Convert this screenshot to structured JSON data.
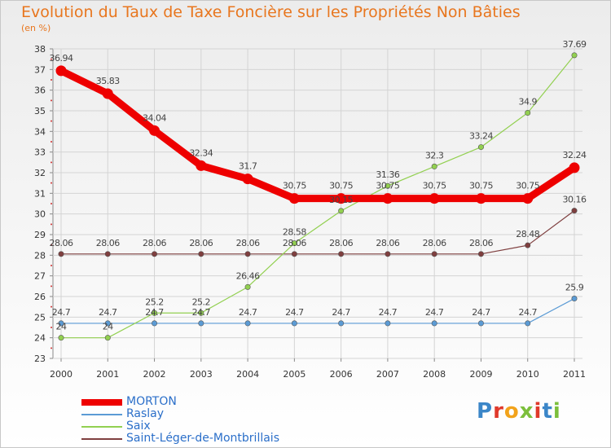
{
  "title": "Evolution du Taux de Taxe Foncière sur les Propriétés Non Bâties",
  "subtitle": "(en %)",
  "logo_text": "Proxiti",
  "logo_colors": [
    "#3b86c8",
    "#e0392b",
    "#f2a31b",
    "#7cbf3c",
    "#e0392b",
    "#3b86c8",
    "#7cbf3c"
  ],
  "chart_data": {
    "type": "line",
    "title": "Evolution du Taux de Taxe Foncière sur les Propriétés Non Bâties",
    "ylabel": "(en %)",
    "ylim": [
      23,
      38
    ],
    "yticks": [
      "23",
      "24",
      "25",
      "26",
      "27",
      "28",
      "29",
      "30",
      "31",
      "32",
      "33",
      "34",
      "35",
      "36",
      "37",
      "38"
    ],
    "x": [
      "2000",
      "2001",
      "2002",
      "2003",
      "2004",
      "2005",
      "2006",
      "2007",
      "2008",
      "2009",
      "2010",
      "2011"
    ],
    "grid": true,
    "legend_position": "bottom-left",
    "series": [
      {
        "name": "MORTON",
        "color": "#ee0000",
        "values": [
          36.94,
          35.83,
          34.04,
          32.34,
          31.7,
          30.75,
          30.75,
          30.75,
          30.75,
          30.75,
          30.75,
          32.24
        ],
        "labels": [
          "36.94",
          "35.83",
          "34.04",
          "32.34",
          "31.7",
          "30.75",
          "30.75",
          "30.75",
          "30.75",
          "30.75",
          "30.75",
          "32.24"
        ]
      },
      {
        "name": "Raslay",
        "color": "#5b9bd5",
        "values": [
          24.7,
          24.7,
          24.7,
          24.7,
          24.7,
          24.7,
          24.7,
          24.7,
          24.7,
          24.7,
          24.7,
          25.9
        ],
        "labels": [
          "24.7",
          "24.7",
          "24.7",
          "24.7",
          "24.7",
          "24.7",
          "24.7",
          "24.7",
          "24.7",
          "24.7",
          "24.7",
          "25.9"
        ]
      },
      {
        "name": "Saix",
        "color": "#92d050",
        "values": [
          24,
          24,
          25.2,
          25.2,
          26.46,
          28.58,
          30.15,
          31.36,
          32.3,
          33.24,
          34.9,
          37.69
        ],
        "labels": [
          "24",
          "24",
          "25.2",
          "25.2",
          "26.46",
          "28.58",
          "30.15",
          "31.36",
          "32.3",
          "33.24",
          "34.9",
          "37.69"
        ]
      },
      {
        "name": "Saint-Léger-de-Montbrillais",
        "color": "#7f3f3f",
        "values": [
          28.06,
          28.06,
          28.06,
          28.06,
          28.06,
          28.06,
          28.06,
          28.06,
          28.06,
          28.06,
          28.48,
          30.16
        ],
        "labels": [
          "28.06",
          "28.06",
          "28.06",
          "28.06",
          "28.06",
          "28.06",
          "28.06",
          "28.06",
          "28.06",
          "28.06",
          "28.48",
          "30.16"
        ]
      }
    ]
  }
}
